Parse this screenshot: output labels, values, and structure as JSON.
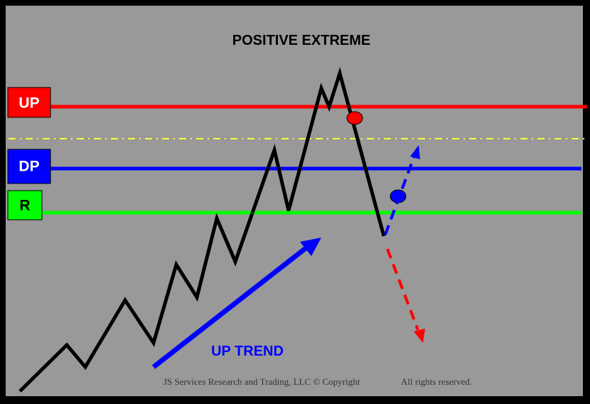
{
  "title": "POSITIVE EXTREME",
  "levels": [
    {
      "label": "UP",
      "box_color": "#ff0000",
      "line_color": "#ff0000",
      "text_color": "#ffffff"
    },
    {
      "label": "DP",
      "box_color": "#0000ff",
      "line_color": "#0000ff",
      "text_color": "#ffffff"
    },
    {
      "label": "R",
      "box_color": "#00ff00",
      "line_color": "#00ff00",
      "text_color": "#000000"
    }
  ],
  "dashed_line_color": "#ffff33",
  "trend_label": "UP TREND",
  "trend_color": "#0000ff",
  "price_line_color": "#000000",
  "markers": {
    "upper_color": "#ff0000",
    "lower_color": "#0000ff"
  },
  "scenario_arrows": {
    "up_color": "#0000ff",
    "down_color": "#ff0000"
  },
  "footer": {
    "left": "JS Services Research and Trading, LLC © Copyright",
    "right": "All rights reserved."
  }
}
